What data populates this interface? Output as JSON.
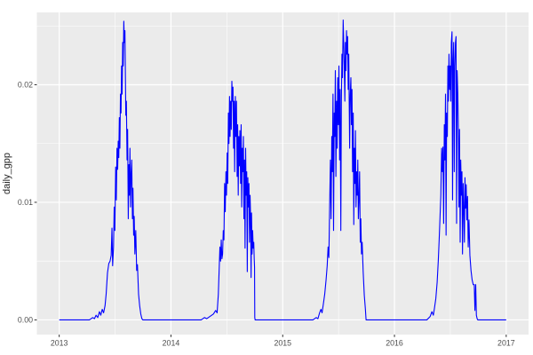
{
  "chart_data": {
    "type": "line",
    "title": "",
    "xlabel": "",
    "ylabel": "daily_gpp",
    "legend": "none",
    "grid": "major+minor, white lines on grey panel (ggplot2 theme_grey)",
    "xlim": [
      2012.8,
      2017.2
    ],
    "ylim": [
      -0.00125,
      0.02615
    ],
    "x_axis": {
      "ticks": [
        2013,
        2014,
        2015,
        2016,
        2017
      ],
      "tick_labels": [
        "2013",
        "2014",
        "2015",
        "2016",
        "2017"
      ],
      "minor_ticks": [
        2013.5,
        2014.5,
        2015.5,
        2016.5
      ]
    },
    "y_axis": {
      "ticks": [
        0,
        0.01,
        0.02
      ],
      "tick_labels": [
        "0.00",
        "0.01",
        "0.02"
      ],
      "minor_ticks": [
        0.005,
        0.015,
        0.025
      ]
    },
    "colors": {
      "line": "#0000FF",
      "panel_bg": "#EBEBEB",
      "grid": "#FFFFFF",
      "tick_text": "#4D4D4D",
      "tick_mark": "#333333",
      "axis_title_text": "#262626",
      "figure_bg": "#FFFFFF"
    },
    "series": [
      {
        "name": "daily_gpp",
        "points": [
          [
            2013.0,
            0
          ],
          [
            2013.27,
            0
          ],
          [
            2013.3,
            0.0002
          ],
          [
            2013.315,
            0.0001
          ],
          [
            2013.33,
            0.0004
          ],
          [
            2013.345,
            0.0002
          ],
          [
            2013.36,
            0.0007
          ],
          [
            2013.372,
            0.0004
          ],
          [
            2013.385,
            0.0009
          ],
          [
            2013.397,
            0.0006
          ],
          [
            2013.41,
            0.0012
          ],
          [
            2013.42,
            0.0022
          ],
          [
            2013.432,
            0.004
          ],
          [
            2013.444,
            0.0048
          ],
          [
            2013.455,
            0.005
          ],
          [
            2013.465,
            0.0055
          ],
          [
            2013.472,
            0.0078
          ],
          [
            2013.478,
            0.0046
          ],
          [
            2013.486,
            0.0062
          ],
          [
            2013.492,
            0.0096
          ],
          [
            2013.498,
            0.0076
          ],
          [
            2013.505,
            0.013
          ],
          [
            2013.511,
            0.0102
          ],
          [
            2013.517,
            0.0146
          ],
          [
            2013.523,
            0.0128
          ],
          [
            2013.528,
            0.0152
          ],
          [
            2013.533,
            0.0138
          ],
          [
            2013.538,
            0.0172
          ],
          [
            2013.543,
            0.0146
          ],
          [
            2013.548,
            0.0192
          ],
          [
            2013.553,
            0.0176
          ],
          [
            2013.558,
            0.0216
          ],
          [
            2013.563,
            0.0192
          ],
          [
            2013.568,
            0.0236
          ],
          [
            2013.573,
            0.0216
          ],
          [
            2013.578,
            0.0254
          ],
          [
            2013.583,
            0.0236
          ],
          [
            2013.588,
            0.0246
          ],
          [
            2013.596,
            0.0174
          ],
          [
            2013.601,
            0.0186
          ],
          [
            2013.607,
            0.0136
          ],
          [
            2013.612,
            0.0162
          ],
          [
            2013.618,
            0.0086
          ],
          [
            2013.623,
            0.0132
          ],
          [
            2013.628,
            0.0106
          ],
          [
            2013.633,
            0.0146
          ],
          [
            2013.638,
            0.0096
          ],
          [
            2013.643,
            0.0122
          ],
          [
            2013.649,
            0.0136
          ],
          [
            2013.655,
            0.0086
          ],
          [
            2013.66,
            0.0112
          ],
          [
            2013.666,
            0.0072
          ],
          [
            2013.671,
            0.0088
          ],
          [
            2013.677,
            0.0056
          ],
          [
            2013.685,
            0.0076
          ],
          [
            2013.693,
            0.0042
          ],
          [
            2013.7,
            0.0047
          ],
          [
            2013.71,
            0.0022
          ],
          [
            2013.72,
            0.0012
          ],
          [
            2013.73,
            0.0005
          ],
          [
            2013.74,
            0.0001
          ],
          [
            2013.748,
            0
          ],
          [
            2014.27,
            0
          ],
          [
            2014.3,
            0.0002
          ],
          [
            2014.32,
            0.0001
          ],
          [
            2014.35,
            0.0003
          ],
          [
            2014.38,
            0.0005
          ],
          [
            2014.4,
            0.0008
          ],
          [
            2014.413,
            0.0006
          ],
          [
            2014.424,
            0.0022
          ],
          [
            2014.432,
            0.0045
          ],
          [
            2014.438,
            0.0062
          ],
          [
            2014.444,
            0.005
          ],
          [
            2014.45,
            0.0068
          ],
          [
            2014.456,
            0.0052
          ],
          [
            2014.462,
            0.0056
          ],
          [
            2014.468,
            0.0076
          ],
          [
            2014.474,
            0.0068
          ],
          [
            2014.48,
            0.0116
          ],
          [
            2014.486,
            0.0092
          ],
          [
            2014.492,
            0.0126
          ],
          [
            2014.497,
            0.0106
          ],
          [
            2014.503,
            0.0142
          ],
          [
            2014.508,
            0.0116
          ],
          [
            2014.514,
            0.0176
          ],
          [
            2014.519,
            0.015
          ],
          [
            2014.524,
            0.019
          ],
          [
            2014.529,
            0.0156
          ],
          [
            2014.534,
            0.0186
          ],
          [
            2014.54,
            0.0162
          ],
          [
            2014.545,
            0.0203
          ],
          [
            2014.55,
            0.0186
          ],
          [
            2014.555,
            0.0198
          ],
          [
            2014.56,
            0.0146
          ],
          [
            2014.565,
            0.0186
          ],
          [
            2014.57,
            0.0126
          ],
          [
            2014.576,
            0.019
          ],
          [
            2014.581,
            0.0156
          ],
          [
            2014.586,
            0.0186
          ],
          [
            2014.592,
            0.0122
          ],
          [
            2014.597,
            0.0166
          ],
          [
            2014.602,
            0.0106
          ],
          [
            2014.607,
            0.0156
          ],
          [
            2014.612,
            0.0131
          ],
          [
            2014.617,
            0.0161
          ],
          [
            2014.623,
            0.0116
          ],
          [
            2014.628,
            0.0166
          ],
          [
            2014.633,
            0.0096
          ],
          [
            2014.638,
            0.0146
          ],
          [
            2014.643,
            0.0126
          ],
          [
            2014.648,
            0.0156
          ],
          [
            2014.653,
            0.0086
          ],
          [
            2014.658,
            0.0136
          ],
          [
            2014.663,
            0.0061
          ],
          [
            2014.668,
            0.0146
          ],
          [
            2014.673,
            0.0106
          ],
          [
            2014.678,
            0.0126
          ],
          [
            2014.683,
            0.0041
          ],
          [
            2014.688,
            0.0121
          ],
          [
            2014.693,
            0.0096
          ],
          [
            2014.698,
            0.0116
          ],
          [
            2014.703,
            0.0066
          ],
          [
            2014.708,
            0.0106
          ],
          [
            2014.713,
            0.0086
          ],
          [
            2014.717,
            0.0036
          ],
          [
            2014.721,
            0.0091
          ],
          [
            2014.726,
            0.0056
          ],
          [
            2014.731,
            0.0076
          ],
          [
            2014.736,
            0.0061
          ],
          [
            2014.741,
            0.0066
          ],
          [
            2014.745,
            0.0052
          ],
          [
            2014.748,
            0.0045
          ],
          [
            2014.75,
            0.0002
          ],
          [
            2014.753,
            0
          ],
          [
            2015.27,
            0
          ],
          [
            2015.3,
            0.0002
          ],
          [
            2015.315,
            0.0001
          ],
          [
            2015.33,
            0.0006
          ],
          [
            2015.342,
            0.0009
          ],
          [
            2015.352,
            0.0006
          ],
          [
            2015.363,
            0.0013
          ],
          [
            2015.376,
            0.0022
          ],
          [
            2015.388,
            0.0034
          ],
          [
            2015.398,
            0.0046
          ],
          [
            2015.406,
            0.0062
          ],
          [
            2015.413,
            0.0053
          ],
          [
            2015.42,
            0.0096
          ],
          [
            2015.427,
            0.0136
          ],
          [
            2015.433,
            0.0086
          ],
          [
            2015.439,
            0.0156
          ],
          [
            2015.444,
            0.0126
          ],
          [
            2015.45,
            0.0192
          ],
          [
            2015.455,
            0.0076
          ],
          [
            2015.461,
            0.0176
          ],
          [
            2015.466,
            0.0156
          ],
          [
            2015.471,
            0.0212
          ],
          [
            2015.476,
            0.0122
          ],
          [
            2015.482,
            0.0186
          ],
          [
            2015.487,
            0.0146
          ],
          [
            2015.492,
            0.0206
          ],
          [
            2015.498,
            0.0166
          ],
          [
            2015.503,
            0.0216
          ],
          [
            2015.509,
            0.0136
          ],
          [
            2015.514,
            0.0196
          ],
          [
            2015.52,
            0.0076
          ],
          [
            2015.525,
            0.0186
          ],
          [
            2015.53,
            0.0226
          ],
          [
            2015.535,
            0.0206
          ],
          [
            2015.541,
            0.0255
          ],
          [
            2015.546,
            0.0236
          ],
          [
            2015.551,
            0.0216
          ],
          [
            2015.556,
            0.0186
          ],
          [
            2015.561,
            0.0236
          ],
          [
            2015.566,
            0.0212
          ],
          [
            2015.571,
            0.0246
          ],
          [
            2015.576,
            0.0226
          ],
          [
            2015.581,
            0.0241
          ],
          [
            2015.586,
            0.0196
          ],
          [
            2015.591,
            0.0226
          ],
          [
            2015.599,
            0.0146
          ],
          [
            2015.604,
            0.0191
          ],
          [
            2015.61,
            0.0206
          ],
          [
            2015.615,
            0.0166
          ],
          [
            2015.62,
            0.0196
          ],
          [
            2015.625,
            0.0126
          ],
          [
            2015.631,
            0.0176
          ],
          [
            2015.636,
            0.0081
          ],
          [
            2015.641,
            0.0146
          ],
          [
            2015.646,
            0.0116
          ],
          [
            2015.651,
            0.0161
          ],
          [
            2015.656,
            0.0096
          ],
          [
            2015.662,
            0.0126
          ],
          [
            2015.667,
            0.0106
          ],
          [
            2015.672,
            0.0136
          ],
          [
            2015.677,
            0.0086
          ],
          [
            2015.683,
            0.0106
          ],
          [
            2015.688,
            0.0126
          ],
          [
            2015.694,
            0.0066
          ],
          [
            2015.699,
            0.0086
          ],
          [
            2015.705,
            0.0056
          ],
          [
            2015.711,
            0.0066
          ],
          [
            2015.72,
            0.0041
          ],
          [
            2015.73,
            0.0021
          ],
          [
            2015.74,
            0.0009
          ],
          [
            2015.746,
            0
          ],
          [
            2016.29,
            0
          ],
          [
            2016.32,
            0.0003
          ],
          [
            2016.335,
            0.0007
          ],
          [
            2016.348,
            0.0004
          ],
          [
            2016.358,
            0.001
          ],
          [
            2016.37,
            0.0018
          ],
          [
            2016.382,
            0.0032
          ],
          [
            2016.392,
            0.005
          ],
          [
            2016.4,
            0.0068
          ],
          [
            2016.408,
            0.0088
          ],
          [
            2016.415,
            0.0106
          ],
          [
            2016.422,
            0.0146
          ],
          [
            2016.428,
            0.0126
          ],
          [
            2016.434,
            0.0147
          ],
          [
            2016.44,
            0.0082
          ],
          [
            2016.446,
            0.0166
          ],
          [
            2016.451,
            0.0136
          ],
          [
            2016.457,
            0.0192
          ],
          [
            2016.462,
            0.0072
          ],
          [
            2016.467,
            0.0176
          ],
          [
            2016.473,
            0.0156
          ],
          [
            2016.478,
            0.0216
          ],
          [
            2016.483,
            0.0186
          ],
          [
            2016.488,
            0.0226
          ],
          [
            2016.494,
            0.0196
          ],
          [
            2016.499,
            0.0216
          ],
          [
            2016.504,
            0.0186
          ],
          [
            2016.509,
            0.0236
          ],
          [
            2016.515,
            0.0245
          ],
          [
            2016.52,
            0.0102
          ],
          [
            2016.525,
            0.0221
          ],
          [
            2016.53,
            0.0236
          ],
          [
            2016.535,
            0.0126
          ],
          [
            2016.54,
            0.0216
          ],
          [
            2016.546,
            0.0236
          ],
          [
            2016.551,
            0.0241
          ],
          [
            2016.556,
            0.0082
          ],
          [
            2016.561,
            0.0212
          ],
          [
            2016.567,
            0.0192
          ],
          [
            2016.572,
            0.0162
          ],
          [
            2016.577,
            0.0096
          ],
          [
            2016.582,
            0.0162
          ],
          [
            2016.588,
            0.0066
          ],
          [
            2016.593,
            0.0136
          ],
          [
            2016.599,
            0.0106
          ],
          [
            2016.604,
            0.0126
          ],
          [
            2016.609,
            0.0056
          ],
          [
            2016.615,
            0.0116
          ],
          [
            2016.62,
            0.0096
          ],
          [
            2016.626,
            0.0066
          ],
          [
            2016.631,
            0.0121
          ],
          [
            2016.636,
            0.0095
          ],
          [
            2016.642,
            0.0115
          ],
          [
            2016.647,
            0.0085
          ],
          [
            2016.654,
            0.0105
          ],
          [
            2016.66,
            0.0062
          ],
          [
            2016.667,
            0.0085
          ],
          [
            2016.675,
            0.0055
          ],
          [
            2016.685,
            0.0042
          ],
          [
            2016.695,
            0.0034
          ],
          [
            2016.705,
            0.003
          ],
          [
            2016.714,
            0.003
          ],
          [
            2016.72,
            0.0008
          ],
          [
            2016.727,
            0.003
          ],
          [
            2016.733,
            0.0004
          ],
          [
            2016.74,
            0.0001
          ],
          [
            2016.746,
            0
          ],
          [
            2017.0,
            0
          ]
        ]
      }
    ]
  }
}
